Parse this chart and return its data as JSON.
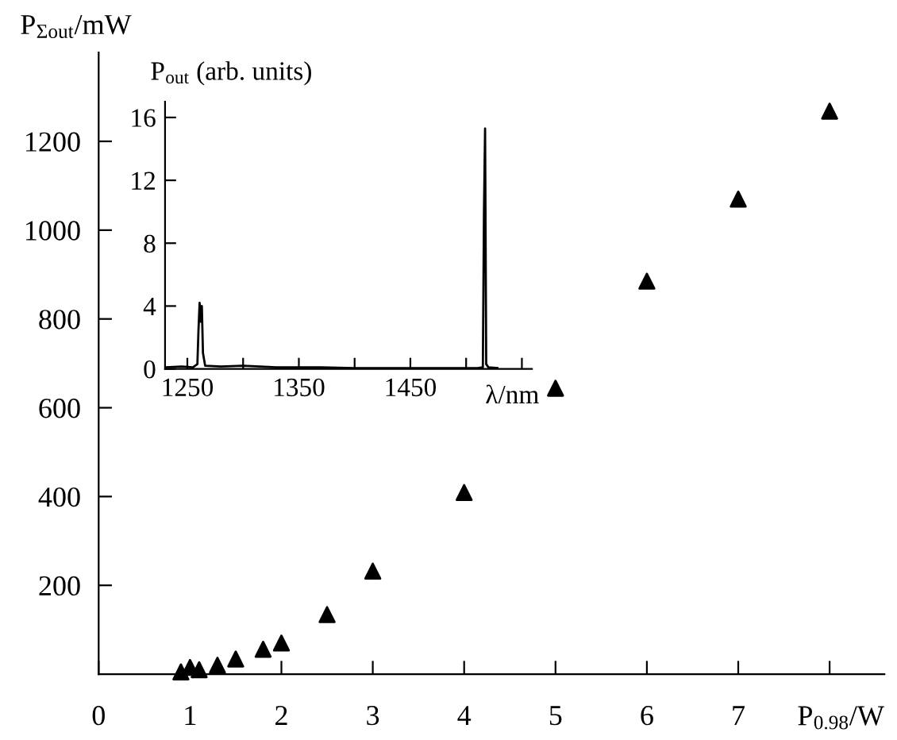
{
  "chart_data": [
    {
      "type": "scatter",
      "xlabel": "P$_{0.98}$/W",
      "ylabel": "P$_{Σout}$/mW",
      "marker": "triangle",
      "x": [
        0.9,
        1.0,
        1.1,
        1.3,
        1.5,
        1.8,
        2.0,
        2.5,
        3.0,
        4.0,
        5.0,
        6.0,
        7.0,
        8.0
      ],
      "values": [
        5,
        15,
        10,
        20,
        34,
        56,
        70,
        134,
        232,
        409,
        644,
        885,
        1070,
        1268
      ],
      "color": "#000000",
      "xlim": [
        0,
        8.6
      ],
      "ylim": [
        0,
        1400
      ],
      "xticks": [
        0,
        1,
        2,
        3,
        4,
        5,
        6,
        7,
        {
          "value": 8,
          "label": null
        }
      ],
      "yticks": [
        200,
        400,
        600,
        800,
        1000,
        1200
      ]
    },
    {
      "type": "line",
      "xlabel": "λ/nm",
      "ylabel": "P$_{out}$ (arb. units)",
      "color": "#000000",
      "x": [
        1230,
        1245,
        1255,
        1259,
        1260,
        1261,
        1262,
        1263,
        1264,
        1266,
        1280,
        1300,
        1330,
        1370,
        1400,
        1440,
        1480,
        1510,
        1515,
        1516,
        1517,
        1518,
        1520,
        1528
      ],
      "values": [
        0.1,
        0.15,
        0.1,
        0.3,
        2.5,
        4.2,
        3.0,
        4.0,
        1.0,
        0.2,
        0.15,
        0.2,
        0.1,
        0.1,
        0.05,
        0.05,
        0.05,
        0.05,
        0.1,
        10,
        15.3,
        0.3,
        0.1,
        0.05
      ],
      "xlim": [
        1230,
        1559
      ],
      "ylim": [
        0,
        17
      ],
      "xticks": [
        1250,
        {
          "value": 1300,
          "label": null
        },
        1350,
        {
          "value": 1400,
          "label": null
        },
        1450,
        {
          "value": 1500,
          "label": null
        },
        {
          "value": 1550,
          "label": null
        }
      ],
      "yticks": [
        0,
        4,
        8,
        12,
        16
      ]
    }
  ]
}
